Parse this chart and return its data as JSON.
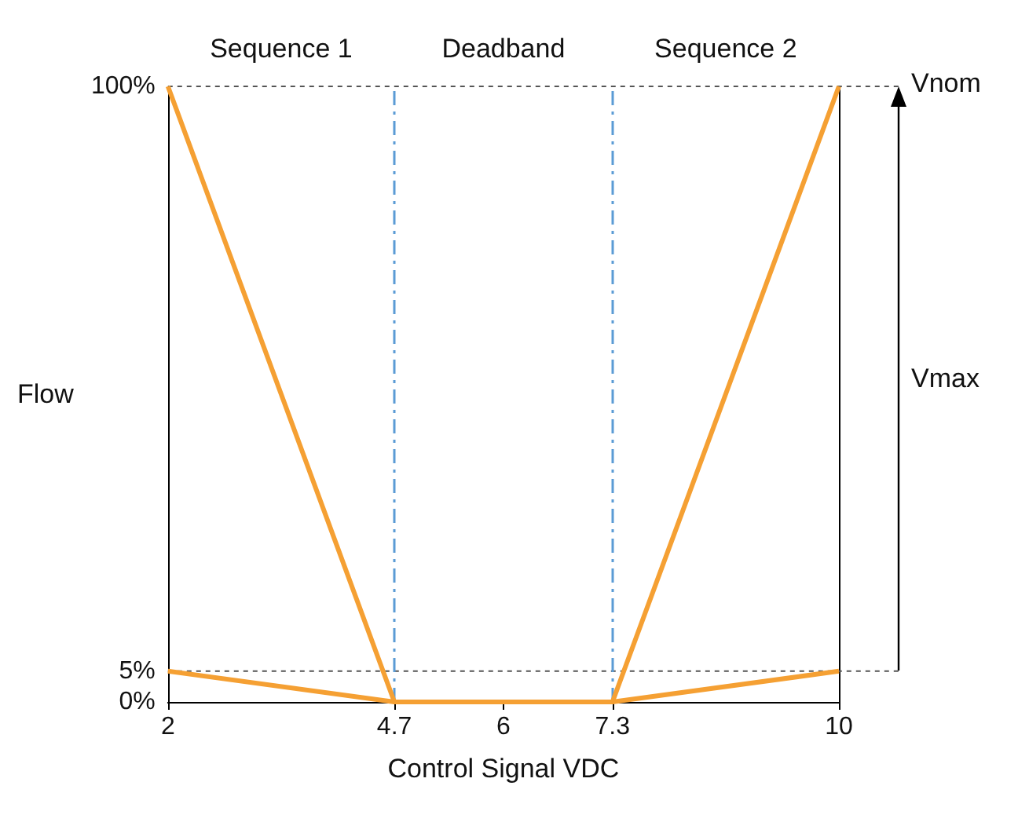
{
  "chart_data": {
    "type": "line",
    "xlabel": "Control Signal VDC",
    "ylabel": "Flow",
    "x": [
      2,
      4.7,
      7.3,
      10
    ],
    "series": [
      {
        "color": "#f5a033",
        "values": [
          100,
          0,
          0,
          100
        ]
      },
      {
        "color": "#f5a033",
        "values": [
          5,
          0,
          0,
          5
        ]
      }
    ],
    "xlim": [
      2,
      10
    ],
    "xticks": [
      2,
      4.7,
      6,
      7.3,
      10
    ],
    "ylim": [
      0,
      100
    ],
    "yticks": [
      {
        "value": 0,
        "label": "0%"
      },
      {
        "value": 5,
        "label": "5%"
      },
      {
        "value": 100,
        "label": "100%"
      }
    ],
    "ref_lines": [
      {
        "axis": "x",
        "value": 4.7,
        "color": "#5b9bd5",
        "line_style": "dashed"
      },
      {
        "axis": "x",
        "value": 7.3,
        "color": "#5b9bd5",
        "line_style": "dashed"
      },
      {
        "axis": "y",
        "value": 100,
        "color": "#555555",
        "line_style": "dotted"
      },
      {
        "axis": "y",
        "value": 5,
        "color": "#555555",
        "line_style": "dotted"
      }
    ],
    "annotations": [
      "Sequence 1",
      "Deadband",
      "Sequence 2",
      "Vnom",
      "Vmax"
    ],
    "grid": false,
    "marker": "none",
    "line_style": "solid"
  }
}
